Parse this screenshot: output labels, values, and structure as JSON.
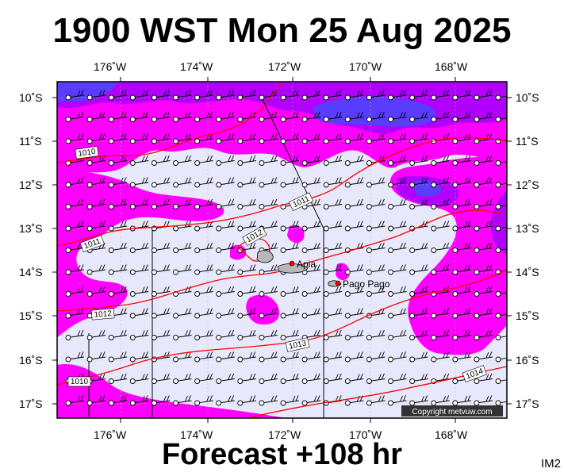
{
  "header": {
    "title": "1900 WST Mon 25 Aug 2025"
  },
  "footer": {
    "forecast": "Forecast +108 hr",
    "code": "IM2"
  },
  "map": {
    "copyright": "Copyright metvuw.com",
    "colors": {
      "background": "#e8e8fc",
      "precip_light": "#ff00ff",
      "precip_medium": "#b200ff",
      "precip_heavy": "#5a3cff",
      "isobar": "#ff0000",
      "land": "#b8b8b8"
    },
    "lon_labels": [
      "176˚W",
      "174˚W",
      "172˚W",
      "170˚W",
      "168˚W"
    ],
    "lat_labels": [
      "10˚S",
      "11˚S",
      "12˚S",
      "13˚S",
      "14˚S",
      "15˚S",
      "16˚S",
      "17˚S"
    ],
    "isobar_labels": [
      "1010",
      "1011",
      "1011",
      "1012",
      "1012",
      "1013",
      "1014",
      "1010"
    ],
    "places": [
      "Apia",
      "Pago Pago"
    ]
  }
}
